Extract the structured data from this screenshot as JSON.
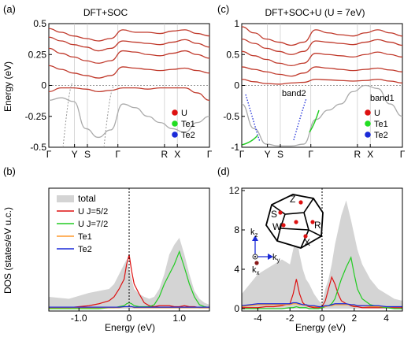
{
  "chart_data": [
    {
      "panel_label": "(a)",
      "title": "DFT+SOC",
      "type": "line",
      "ylabel": "Energy (eV)",
      "ylim": [
        -0.5,
        0.5
      ],
      "yticks": [
        "0.5",
        "0.25",
        "0",
        "-0.25",
        "-0.5"
      ],
      "xticks": [
        "Γ",
        "Y",
        "S",
        "Γ",
        "R",
        "X",
        "Γ"
      ],
      "legend": [
        "U",
        "Te1",
        "Te2"
      ],
      "legend_position": "bottom-right",
      "bands": [
        {
          "name": "",
          "values": [
            0.46,
            0.43,
            0.4,
            0.38,
            0.36,
            0.38,
            0.45,
            0.43,
            0.43,
            0.42,
            0.44,
            0.45,
            0.42,
            0.4
          ]
        },
        {
          "name": "",
          "values": [
            0.39,
            0.36,
            0.33,
            0.31,
            0.28,
            0.3,
            0.36,
            0.35,
            0.34,
            0.33,
            0.35,
            0.37,
            0.34,
            0.31
          ]
        },
        {
          "name": "",
          "values": [
            0.3,
            0.26,
            0.23,
            0.2,
            0.18,
            0.2,
            0.28,
            0.27,
            0.25,
            0.24,
            0.26,
            0.28,
            0.25,
            0.22
          ]
        },
        {
          "name": "",
          "values": [
            0.16,
            0.13,
            0.1,
            0.08,
            0.06,
            0.08,
            0.15,
            0.14,
            0.13,
            0.12,
            0.13,
            0.14,
            0.12,
            0.1
          ]
        },
        {
          "name": "",
          "values": [
            -0.05,
            -0.02,
            -0.02,
            -0.03,
            -0.05,
            -0.04,
            -0.02,
            -0.02,
            -0.03,
            -0.02,
            -0.02,
            -0.02,
            -0.06,
            -0.12
          ]
        },
        {
          "name": "",
          "values": [
            -0.12,
            -0.1,
            -0.13,
            -0.35,
            -0.42,
            -0.36,
            -0.15,
            -0.18,
            -0.25,
            -0.3,
            -0.35,
            -0.38,
            -0.3,
            -0.25
          ]
        }
      ]
    },
    {
      "panel_label": "(b)",
      "type": "area",
      "ylabel": "DOS  (states/eV u.c.)",
      "xlabel": "Energy  (eV)",
      "xlim": [
        -1.6,
        1.6
      ],
      "ylim": [
        0,
        12
      ],
      "xticks": [
        "-1.0",
        "0",
        "1.0"
      ],
      "legend": [
        "total",
        "U J=5/2",
        "U J=7/2",
        "Te1",
        "Te2"
      ],
      "legend_position": "top-left",
      "x": [
        -1.6,
        -1.4,
        -1.2,
        -1.0,
        -0.8,
        -0.6,
        -0.4,
        -0.3,
        -0.2,
        -0.1,
        -0.05,
        0.0,
        0.05,
        0.1,
        0.2,
        0.3,
        0.4,
        0.5,
        0.6,
        0.7,
        0.8,
        0.9,
        1.0,
        1.1,
        1.2,
        1.3,
        1.4,
        1.5,
        1.6
      ],
      "series": [
        {
          "name": "total",
          "values": [
            1.2,
            1.1,
            1.0,
            1.3,
            1.6,
            1.8,
            2.0,
            2.5,
            3.5,
            4.5,
            5.0,
            4.0,
            3.0,
            2.0,
            1.5,
            1.2,
            1.0,
            1.2,
            2.0,
            3.5,
            5.5,
            6.5,
            7.2,
            5.5,
            3.5,
            1.8,
            1.0,
            0.6,
            0.4
          ]
        },
        {
          "name": "U J=5/2",
          "values": [
            0.1,
            0.1,
            0.1,
            0.2,
            0.3,
            0.5,
            0.8,
            1.2,
            2.0,
            3.0,
            4.5,
            5.5,
            3.8,
            2.5,
            1.5,
            0.6,
            0.3,
            0.2,
            0.3,
            0.3,
            0.3,
            0.2,
            0.2,
            0.3,
            0.2,
            0.2,
            0.1,
            0.1,
            0.1
          ]
        },
        {
          "name": "U J=7/2",
          "values": [
            0.0,
            0.0,
            0.0,
            0.0,
            0.0,
            0.0,
            0.1,
            0.1,
            0.2,
            0.3,
            0.5,
            0.6,
            0.5,
            0.3,
            0.2,
            0.2,
            0.2,
            0.4,
            1.2,
            2.5,
            3.5,
            4.5,
            5.8,
            4.2,
            2.5,
            1.2,
            0.4,
            0.2,
            0.1
          ]
        },
        {
          "name": "Te1",
          "values": [
            0.1,
            0.1,
            0.1,
            0.1,
            0.1,
            0.1,
            0.1,
            0.1,
            0.1,
            0.2,
            0.2,
            0.2,
            0.2,
            0.1,
            0.1,
            0.1,
            0.1,
            0.1,
            0.1,
            0.1,
            0.1,
            0.1,
            0.1,
            0.1,
            0.1,
            0.1,
            0.1,
            0.1,
            0.1
          ]
        },
        {
          "name": "Te2",
          "values": [
            0.15,
            0.15,
            0.15,
            0.15,
            0.15,
            0.15,
            0.15,
            0.15,
            0.15,
            0.2,
            0.2,
            0.2,
            0.2,
            0.15,
            0.15,
            0.15,
            0.15,
            0.15,
            0.15,
            0.15,
            0.15,
            0.15,
            0.15,
            0.15,
            0.15,
            0.15,
            0.15,
            0.15,
            0.15
          ]
        }
      ]
    },
    {
      "panel_label": "(c)",
      "title": "DFT+SOC+U (U = 7eV)",
      "type": "line",
      "ylim": [
        -1,
        1
      ],
      "yticks": [
        "1",
        "0.5",
        "0",
        "-0.5",
        "-1"
      ],
      "xticks": [
        "Γ",
        "Y",
        "S",
        "Γ",
        "R",
        "X",
        "Γ"
      ],
      "annotations": [
        "band2",
        "band1"
      ],
      "legend": [
        "U",
        "Te1",
        "Te2"
      ],
      "legend_position": "bottom-right",
      "bands": [
        {
          "name": "",
          "values": [
            0.95,
            0.85,
            0.75,
            0.7,
            0.65,
            0.7,
            0.9,
            0.85,
            0.82,
            0.8,
            0.85,
            0.9,
            0.85,
            0.8
          ]
        },
        {
          "name": "",
          "values": [
            0.75,
            0.68,
            0.6,
            0.55,
            0.5,
            0.55,
            0.72,
            0.7,
            0.68,
            0.66,
            0.7,
            0.74,
            0.7,
            0.65
          ]
        },
        {
          "name": "",
          "values": [
            0.55,
            0.48,
            0.42,
            0.36,
            0.32,
            0.36,
            0.52,
            0.5,
            0.48,
            0.46,
            0.5,
            0.54,
            0.5,
            0.46
          ]
        },
        {
          "name": "",
          "values": [
            0.3,
            0.26,
            0.22,
            0.18,
            0.15,
            0.2,
            0.3,
            0.28,
            0.26,
            0.24,
            0.26,
            0.28,
            0.25,
            0.22
          ]
        },
        {
          "name": "",
          "values": [
            0.1,
            0.06,
            0.03,
            0.02,
            0.04,
            0.05,
            0.1,
            0.09,
            0.08,
            0.07,
            0.08,
            0.1,
            0.07,
            0.04
          ]
        },
        {
          "name": "",
          "values": [
            -0.3,
            -0.7,
            -0.95,
            -0.98,
            -0.98,
            -0.95,
            -0.55,
            -0.4,
            -0.3,
            -0.1,
            0.0,
            -0.05,
            -0.3,
            -0.5
          ]
        }
      ]
    },
    {
      "panel_label": "(d)",
      "type": "area",
      "xlabel": "Energy  (eV)",
      "xlim": [
        -5,
        5
      ],
      "ylim": [
        0,
        12
      ],
      "xticks": [
        "-4",
        "-2",
        "0",
        "2",
        "4"
      ],
      "yticks": [
        "0",
        "4",
        "8",
        "12"
      ],
      "inset_labels": [
        "Z",
        "S",
        "W",
        "R",
        "X",
        "k",
        "z",
        "k",
        "y",
        "k",
        "x"
      ],
      "x": [
        -5.0,
        -4.5,
        -4.0,
        -3.5,
        -3.0,
        -2.5,
        -2.0,
        -1.8,
        -1.6,
        -1.4,
        -1.2,
        -1.0,
        -0.8,
        -0.5,
        -0.2,
        0.0,
        0.2,
        0.4,
        0.6,
        0.8,
        1.0,
        1.2,
        1.5,
        1.8,
        2.0,
        2.2,
        2.5,
        3.0,
        3.5,
        4.0,
        4.5,
        5.0
      ],
      "series": [
        {
          "name": "total",
          "values": [
            1.5,
            2.5,
            3.5,
            4.0,
            4.5,
            5.0,
            4.5,
            6.0,
            7.5,
            5.5,
            4.0,
            3.0,
            2.5,
            1.5,
            0.8,
            0.5,
            2.0,
            3.0,
            4.5,
            6.5,
            8.0,
            9.5,
            11.0,
            9.0,
            7.5,
            6.0,
            4.5,
            3.0,
            2.0,
            1.5,
            1.0,
            0.8
          ]
        },
        {
          "name": "U J=5/2",
          "values": [
            0.1,
            0.1,
            0.1,
            0.2,
            0.2,
            0.3,
            0.5,
            1.5,
            3.0,
            1.5,
            0.6,
            0.3,
            0.2,
            0.1,
            0.1,
            0.2,
            0.8,
            2.0,
            3.2,
            2.5,
            1.5,
            0.8,
            0.5,
            0.3,
            0.2,
            0.2,
            0.1,
            0.1,
            0.1,
            0.1,
            0.1,
            0.1
          ]
        },
        {
          "name": "U J=7/2",
          "values": [
            0.0,
            0.0,
            0.0,
            0.0,
            0.0,
            0.0,
            0.1,
            0.1,
            0.2,
            0.1,
            0.1,
            0.1,
            0.0,
            0.0,
            0.0,
            0.1,
            0.2,
            0.3,
            0.5,
            1.0,
            2.0,
            3.0,
            4.2,
            5.2,
            3.5,
            2.0,
            1.0,
            0.4,
            0.2,
            0.1,
            0.0,
            0.0
          ]
        },
        {
          "name": "Te1",
          "values": [
            0.2,
            0.3,
            0.4,
            0.4,
            0.4,
            0.4,
            0.4,
            0.5,
            0.5,
            0.4,
            0.4,
            0.3,
            0.3,
            0.2,
            0.2,
            0.2,
            0.2,
            0.3,
            0.3,
            0.4,
            0.4,
            0.4,
            0.4,
            0.4,
            0.3,
            0.3,
            0.3,
            0.2,
            0.2,
            0.2,
            0.2,
            0.2
          ]
        },
        {
          "name": "Te2",
          "values": [
            0.3,
            0.4,
            0.5,
            0.5,
            0.5,
            0.5,
            0.5,
            0.6,
            0.6,
            0.5,
            0.4,
            0.4,
            0.3,
            0.3,
            0.2,
            0.2,
            0.3,
            0.3,
            0.4,
            0.5,
            0.5,
            0.5,
            0.5,
            0.4,
            0.4,
            0.3,
            0.3,
            0.3,
            0.3,
            0.2,
            0.2,
            0.2
          ]
        }
      ]
    }
  ],
  "colors": {
    "band": "#c0392b",
    "band_gray": "#aaaaaa",
    "total_fill": "#d4d4d4",
    "U": "#dd1111",
    "U_J52": "#dd1111",
    "U_J72": "#22cc22",
    "Te1": "#22dd22",
    "Te1_dos": "#ff9a2e",
    "Te2": "#1a2ad8",
    "Te2_dos": "#1a2ad8"
  }
}
